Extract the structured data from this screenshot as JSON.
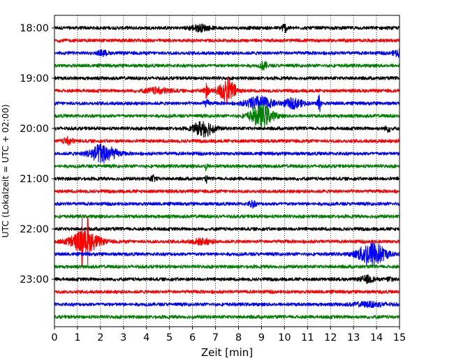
{
  "chart_data": {
    "type": "line",
    "title": "",
    "xlabel": "Zeit  [min]",
    "ylabel": "UTC (Lokalzeit = UTC + 02:00)",
    "xlim": [
      0,
      15
    ],
    "xticks": [
      "0",
      "1",
      "2",
      "3",
      "4",
      "5",
      "6",
      "7",
      "8",
      "9",
      "10",
      "11",
      "12",
      "13",
      "14",
      "15"
    ],
    "ytick_labels": [
      "18:00",
      "19:00",
      "20:00",
      "21:00",
      "22:00",
      "23:00"
    ],
    "row_minutes": 15,
    "rows_per_hour": 4,
    "grid": "vertical dotted lines at each minute",
    "colors_cycle": [
      "#000000",
      "#ff0000",
      "#0000ff",
      "#008000"
    ],
    "trace_start_labels": [
      "18:00",
      "18:15",
      "18:30",
      "18:45",
      "19:00",
      "19:15",
      "19:30",
      "19:45",
      "20:00",
      "20:15",
      "20:30",
      "20:45",
      "21:00",
      "21:15",
      "21:30",
      "21:45",
      "22:00",
      "22:15",
      "22:30",
      "22:45",
      "23:00",
      "23:15",
      "23:30",
      "23:45"
    ],
    "events": [
      {
        "row": "18:00",
        "t_min": 6.3,
        "amp": 0.45,
        "dur": 0.6
      },
      {
        "row": "18:00",
        "t_min": 10.0,
        "amp": 0.6,
        "dur": 0.2
      },
      {
        "row": "18:30",
        "t_min": 2.1,
        "amp": 0.35,
        "dur": 0.3
      },
      {
        "row": "18:30",
        "t_min": 15.0,
        "amp": 0.5,
        "dur": 0.4
      },
      {
        "row": "18:45",
        "t_min": 9.1,
        "amp": 0.6,
        "dur": 0.2
      },
      {
        "row": "19:15",
        "t_min": 7.5,
        "amp": 1.9,
        "dur": 0.5
      },
      {
        "row": "19:15",
        "t_min": 4.5,
        "amp": 0.4,
        "dur": 0.8
      },
      {
        "row": "19:15",
        "t_min": 6.6,
        "amp": 0.6,
        "dur": 0.2
      },
      {
        "row": "19:30",
        "t_min": 8.9,
        "amp": 1.0,
        "dur": 0.8
      },
      {
        "row": "19:30",
        "t_min": 10.4,
        "amp": 0.7,
        "dur": 0.6
      },
      {
        "row": "19:30",
        "t_min": 11.5,
        "amp": 1.5,
        "dur": 0.1
      },
      {
        "row": "19:30",
        "t_min": 6.6,
        "amp": 0.4,
        "dur": 0.2
      },
      {
        "row": "19:45",
        "t_min": 9.0,
        "amp": 1.6,
        "dur": 0.7
      },
      {
        "row": "20:00",
        "t_min": 6.5,
        "amp": 1.2,
        "dur": 0.6
      },
      {
        "row": "20:00",
        "t_min": 14.5,
        "amp": 0.4,
        "dur": 0.2
      },
      {
        "row": "20:15",
        "t_min": 0.6,
        "amp": 0.5,
        "dur": 0.3
      },
      {
        "row": "20:30",
        "t_min": 2.1,
        "amp": 1.4,
        "dur": 0.8
      },
      {
        "row": "20:45",
        "t_min": 6.6,
        "amp": 1.2,
        "dur": 0.05
      },
      {
        "row": "21:00",
        "t_min": 4.3,
        "amp": 0.4,
        "dur": 0.2
      },
      {
        "row": "21:00",
        "t_min": 6.6,
        "amp": 0.6,
        "dur": 0.05
      },
      {
        "row": "21:30",
        "t_min": 8.6,
        "amp": 0.5,
        "dur": 0.2
      },
      {
        "row": "22:15",
        "t_min": 1.3,
        "amp": 1.6,
        "dur": 0.9
      },
      {
        "row": "22:15",
        "t_min": 6.4,
        "amp": 0.4,
        "dur": 0.6
      },
      {
        "row": "22:30",
        "t_min": 13.8,
        "amp": 1.9,
        "dur": 0.8
      },
      {
        "row": "23:00",
        "t_min": 13.6,
        "amp": 0.5,
        "dur": 0.4
      },
      {
        "row": "23:00",
        "t_min": 14.6,
        "amp": 0.4,
        "dur": 0.2
      },
      {
        "row": "23:30",
        "t_min": 13.7,
        "amp": 0.3,
        "dur": 1.0
      }
    ],
    "spikes": [
      {
        "row": "19:15",
        "t_min": 6.6,
        "amp": 1.2
      },
      {
        "row": "20:30",
        "t_min": 2.0,
        "amp": 1.5
      },
      {
        "row": "22:15",
        "t_min": 1.2,
        "amp": 4.0
      },
      {
        "row": "22:15",
        "t_min": 1.45,
        "amp": 3.8
      },
      {
        "row": "22:30",
        "t_min": 13.9,
        "amp": 1.8
      }
    ]
  }
}
